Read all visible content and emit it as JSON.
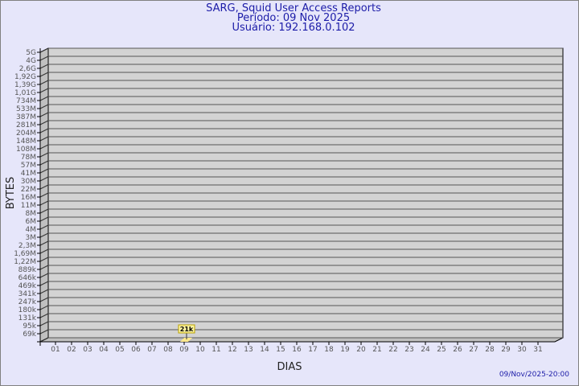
{
  "chart_data": {
    "type": "bar",
    "title": "SARG, Squid User Access Reports",
    "subtitle_period": "Período: 09 Nov 2025",
    "subtitle_user": "Usuário: 192.168.0.102",
    "xlabel": "DIAS",
    "ylabel": "BYTES",
    "y_scale": "log",
    "y_ticks": [
      "5G",
      "4G",
      "2,6G",
      "1,92G",
      "1,39G",
      "1,01G",
      "734M",
      "533M",
      "387M",
      "281M",
      "204M",
      "148M",
      "108M",
      "78M",
      "57M",
      "41M",
      "30M",
      "22M",
      "16M",
      "11M",
      "8M",
      "6M",
      "4M",
      "3M",
      "2,3M",
      "1,69M",
      "1,22M",
      "889k",
      "646k",
      "469k",
      "341k",
      "247k",
      "180k",
      "131k",
      "95k",
      "69k"
    ],
    "categories": [
      "01",
      "02",
      "03",
      "04",
      "05",
      "06",
      "07",
      "08",
      "09",
      "10",
      "11",
      "12",
      "13",
      "14",
      "15",
      "16",
      "17",
      "18",
      "19",
      "20",
      "21",
      "22",
      "23",
      "24",
      "25",
      "26",
      "27",
      "28",
      "29",
      "30",
      "31"
    ],
    "series": [
      {
        "values": [
          null,
          null,
          null,
          null,
          null,
          null,
          null,
          null,
          21000,
          null,
          null,
          null,
          null,
          null,
          null,
          null,
          null,
          null,
          null,
          null,
          null,
          null,
          null,
          null,
          null,
          null,
          null,
          null,
          null,
          null,
          null
        ]
      }
    ],
    "data_labels": {
      "09": "21k"
    },
    "grid": true,
    "colors": {
      "background": "#e6e6fa",
      "wall": "#d3d3d3",
      "bar": "#ffe88c",
      "label_box": "#fff6a0",
      "title": "#1c1ca8"
    }
  },
  "footer": {
    "timestamp": "09/Nov/2025-20:00"
  }
}
